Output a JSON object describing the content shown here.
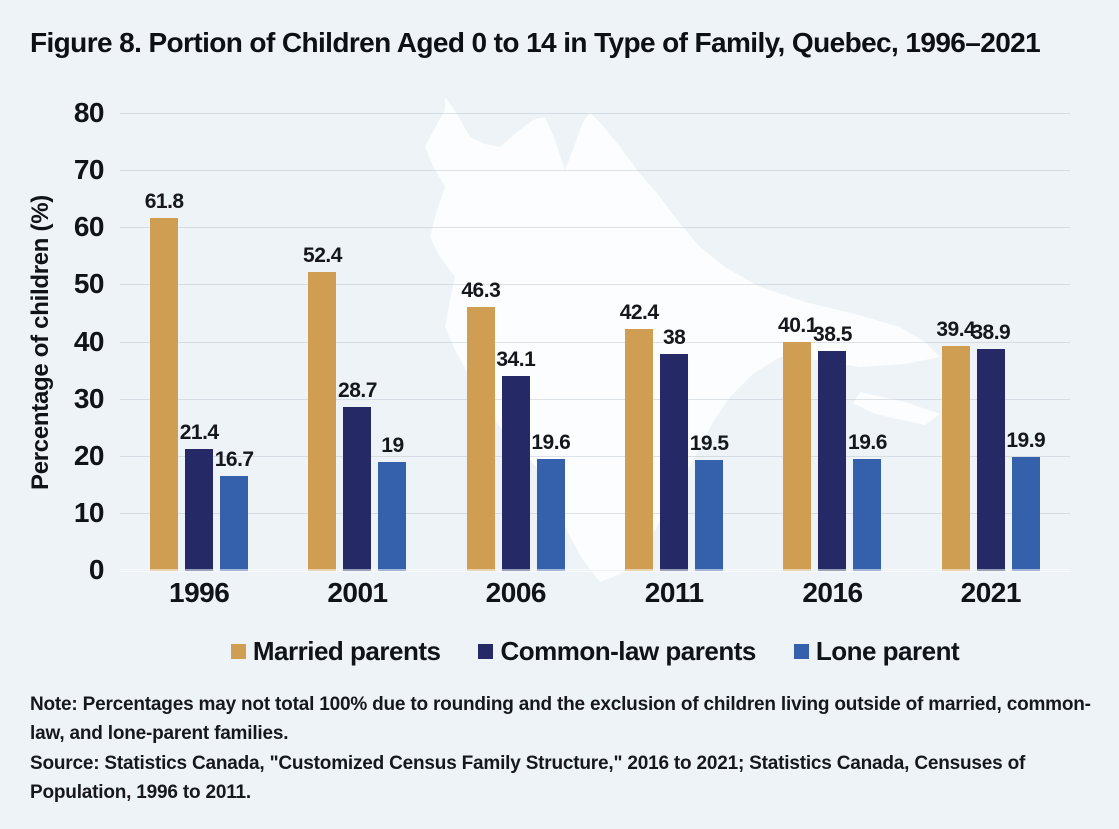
{
  "figure": {
    "title": "Figure 8. Portion of Children Aged 0 to 14 in Type of Family, Quebec, 1996–2021",
    "note": "Note: Percentages may not total 100% due to rounding and the exclusion of children living outside of married, common-law, and lone-parent families.",
    "source": "Source: Statistics Canada, \"Customized Census Family Structure,\" 2016 to 2021; Statistics Canada, Censuses of Population, 1996 to 2011."
  },
  "colors": {
    "background": "#EEF3F7",
    "married": "#CF9E52",
    "common_law": "#252A66",
    "lone": "#3560AC",
    "gridline": "#E2E6EB",
    "map_watermark": "#FBFDFE",
    "text": "#101318"
  },
  "chart_data": {
    "type": "bar",
    "title": "Figure 8. Portion of Children Aged 0 to 14 in Type of Family, Quebec, 1996–2021",
    "categories": [
      "1996",
      "2001",
      "2006",
      "2011",
      "2016",
      "2021"
    ],
    "series": [
      {
        "name": "Married parents",
        "color": "#CF9E52",
        "values": [
          61.8,
          52.4,
          46.3,
          42.4,
          40.1,
          39.4
        ]
      },
      {
        "name": "Common-law parents",
        "color": "#252A66",
        "values": [
          21.4,
          28.7,
          34.1,
          38,
          38.5,
          38.9
        ]
      },
      {
        "name": "Lone parent",
        "color": "#3560AC",
        "values": [
          16.7,
          19,
          19.6,
          19.5,
          19.6,
          19.9
        ]
      }
    ],
    "xlabel": "",
    "ylabel": "Percentage of children (%)",
    "ylim": [
      0,
      80
    ],
    "ytick_step": 10,
    "grid": true,
    "legend_position": "bottom",
    "value_labels": true
  }
}
